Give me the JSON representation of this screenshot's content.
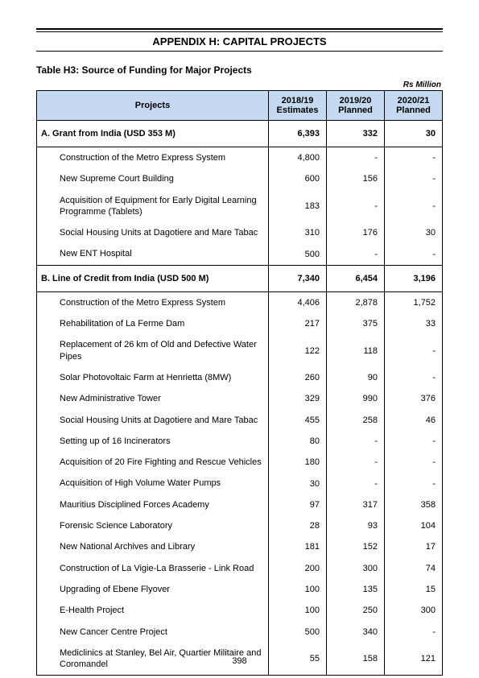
{
  "appendix_title": "APPENDIX H: CAPITAL PROJECTS",
  "table_title": "Table H3: Source of Funding for Major Projects",
  "unit": "Rs Million",
  "columns": {
    "projects": "Projects",
    "c1a": "2018/19",
    "c1b": "Estimates",
    "c2a": "2019/20",
    "c2b": "Planned",
    "c3a": "2020/21",
    "c3b": "Planned"
  },
  "sectionA": {
    "label": "A. Grant from India (USD 353 M)",
    "v1": "6,393",
    "v2": "332",
    "v3": "30",
    "rows": [
      {
        "label": "Construction of the Metro Express System",
        "v1": "4,800",
        "v2": "-",
        "v3": "-"
      },
      {
        "label": "New Supreme Court Building",
        "v1": "600",
        "v2": "156",
        "v3": "-"
      },
      {
        "label": "Acquisition of Equipment for Early Digital Learning Programme (Tablets)",
        "v1": "183",
        "v2": "-",
        "v3": "-"
      },
      {
        "label": "Social Housing Units at Dagotiere and Mare Tabac",
        "v1": "310",
        "v2": "176",
        "v3": "30"
      },
      {
        "label": "New ENT Hospital",
        "v1": "500",
        "v2": "-",
        "v3": "-"
      }
    ]
  },
  "sectionB": {
    "label": "B. Line of Credit from India (USD 500 M)",
    "v1": "7,340",
    "v2": "6,454",
    "v3": "3,196",
    "rows": [
      {
        "label": "Construction of the Metro Express System",
        "v1": "4,406",
        "v2": "2,878",
        "v3": "1,752"
      },
      {
        "label": "Rehabilitation of La Ferme Dam",
        "v1": "217",
        "v2": "375",
        "v3": "33"
      },
      {
        "label": "Replacement of 26 km of Old and Defective Water Pipes",
        "v1": "122",
        "v2": "118",
        "v3": "-"
      },
      {
        "label": "Solar Photovoltaic Farm at Henrietta (8MW)",
        "v1": "260",
        "v2": "90",
        "v3": "-"
      },
      {
        "label": "New Administrative Tower",
        "v1": "329",
        "v2": "990",
        "v3": "376"
      },
      {
        "label": "Social Housing Units at Dagotiere and Mare Tabac",
        "v1": "455",
        "v2": "258",
        "v3": "46"
      },
      {
        "label": "Setting up of 16 Incinerators",
        "v1": "80",
        "v2": "-",
        "v3": "-"
      },
      {
        "label": "Acquisition of 20 Fire Fighting and Rescue Vehicles",
        "v1": "180",
        "v2": "-",
        "v3": "-"
      },
      {
        "label": "Acquisition of High Volume Water Pumps",
        "v1": "30",
        "v2": "-",
        "v3": "-"
      },
      {
        "label": "Mauritius Disciplined Forces Academy",
        "v1": "97",
        "v2": "317",
        "v3": "358"
      },
      {
        "label": "Forensic Science Laboratory",
        "v1": "28",
        "v2": "93",
        "v3": "104"
      },
      {
        "label": "New National Archives and Library",
        "v1": "181",
        "v2": "152",
        "v3": "17"
      },
      {
        "label": "Construction of La Vigie-La Brasserie - Link Road",
        "v1": "200",
        "v2": "300",
        "v3": "74"
      },
      {
        "label": "Upgrading of Ebene Flyover",
        "v1": "100",
        "v2": "135",
        "v3": "15"
      },
      {
        "label": "E-Health Project",
        "v1": "100",
        "v2": "250",
        "v3": "300"
      },
      {
        "label": "New Cancer Centre Project",
        "v1": "500",
        "v2": "340",
        "v3": "-"
      },
      {
        "label": " Mediclinics at Stanley, Bel Air, Quartier Militaire and Coromandel",
        "v1": "55",
        "v2": "158",
        "v3": "121"
      }
    ]
  },
  "page_number": "398"
}
